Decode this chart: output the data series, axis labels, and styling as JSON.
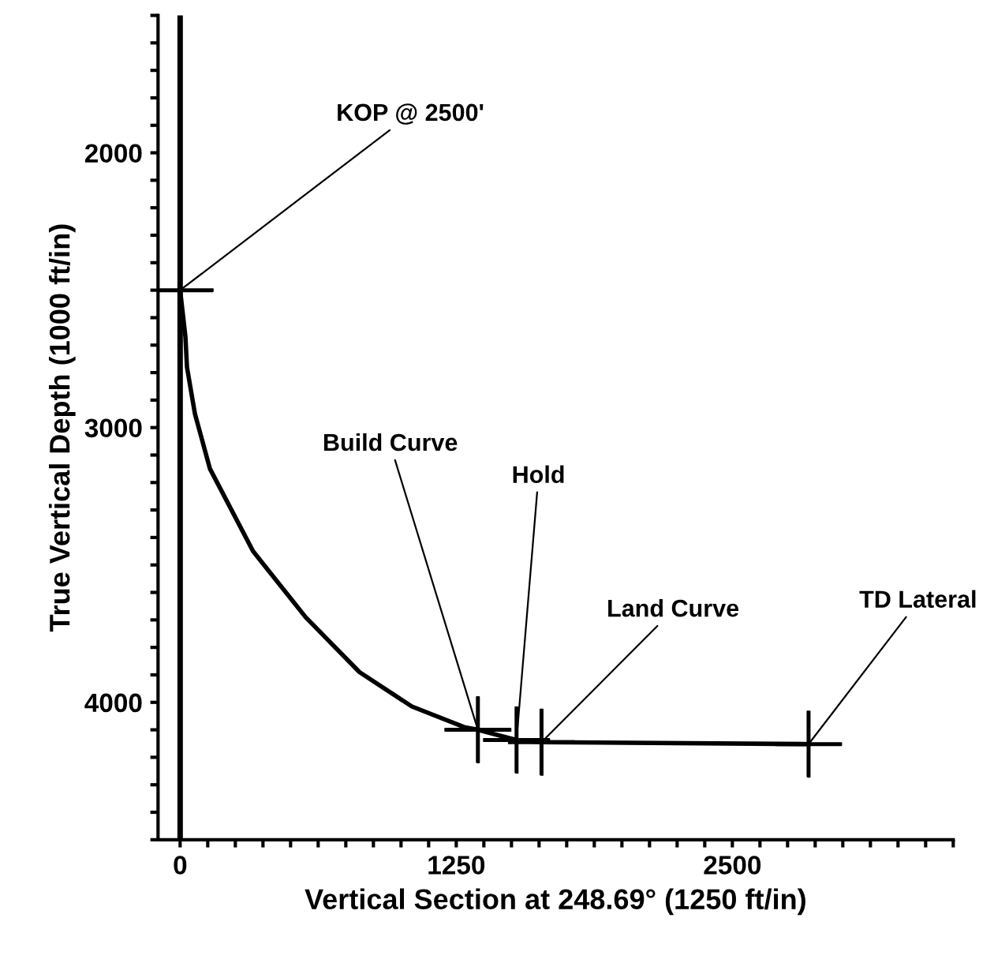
{
  "chart_data": {
    "type": "line",
    "xlabel": "Vertical Section at 248.69° (1250 ft/in)",
    "ylabel": "True Vertical Depth (1000 ft/in)",
    "series": [
      {
        "color": "#000000",
        "marker": "none",
        "x": [
          0,
          24,
          31,
          67,
          135,
          330,
          568,
          812,
          1049,
          1286,
          1348,
          1523,
          1636,
          2845
        ],
        "values": [
          2500,
          2670,
          2780,
          2950,
          3150,
          3450,
          3690,
          3890,
          4015,
          4090,
          4100,
          4137,
          4145,
          4152
        ]
      },
      {
        "type": "scatter",
        "color": "#000000",
        "marker": "cross",
        "x": [
          0,
          1348,
          1523,
          1636,
          2845
        ],
        "values": [
          2500,
          4100,
          4137,
          4145,
          4152
        ]
      }
    ],
    "ref_lines": [
      {
        "axis": "x",
        "value": 0,
        "color": "#000000"
      }
    ],
    "annotations": [
      {
        "text": "KOP @ 2500'",
        "x": 0,
        "y": 2500
      },
      {
        "text": "Build Curve",
        "x": 1348,
        "y": 4100
      },
      {
        "text": "Hold",
        "x": 1523,
        "y": 4137
      },
      {
        "text": "Land Curve",
        "x": 1636,
        "y": 4145
      },
      {
        "text": "TD Lateral",
        "x": 2845,
        "y": 4152
      }
    ],
    "xlim": [
      -100,
      3500
    ],
    "ylim": [
      4500,
      1500
    ],
    "xticks": [
      0,
      {
        "value": 125,
        "label": null
      },
      {
        "value": 250,
        "label": null
      },
      {
        "value": 375,
        "label": null
      },
      {
        "value": 500,
        "label": null
      },
      {
        "value": 625,
        "label": null
      },
      {
        "value": 750,
        "label": null
      },
      {
        "value": 875,
        "label": null
      },
      {
        "value": 1000,
        "label": null
      },
      {
        "value": 1125,
        "label": null
      },
      1250,
      {
        "value": 1375,
        "label": null
      },
      {
        "value": 1500,
        "label": null
      },
      {
        "value": 1625,
        "label": null
      },
      {
        "value": 1750,
        "label": null
      },
      {
        "value": 1875,
        "label": null
      },
      {
        "value": 2000,
        "label": null
      },
      {
        "value": 2125,
        "label": null
      },
      {
        "value": 2250,
        "label": null
      },
      {
        "value": 2375,
        "label": null
      },
      2500,
      {
        "value": 2625,
        "label": null
      },
      {
        "value": 2750,
        "label": null
      },
      {
        "value": 2875,
        "label": null
      },
      {
        "value": 3000,
        "label": null
      },
      {
        "value": 3125,
        "label": null
      },
      {
        "value": 3250,
        "label": null
      },
      {
        "value": 3375,
        "label": null
      },
      {
        "value": 3500,
        "label": null
      }
    ],
    "yticks": [
      {
        "value": 1500,
        "label": null
      },
      {
        "value": 1600,
        "label": null
      },
      {
        "value": 1700,
        "label": null
      },
      {
        "value": 1800,
        "label": null
      },
      {
        "value": 1900,
        "label": null
      },
      2000,
      {
        "value": 2100,
        "label": null
      },
      {
        "value": 2200,
        "label": null
      },
      {
        "value": 2300,
        "label": null
      },
      {
        "value": 2400,
        "label": null
      },
      {
        "value": 2500,
        "label": null
      },
      {
        "value": 2600,
        "label": null
      },
      {
        "value": 2700,
        "label": null
      },
      {
        "value": 2800,
        "label": null
      },
      {
        "value": 2900,
        "label": null
      },
      3000,
      {
        "value": 3100,
        "label": null
      },
      {
        "value": 3200,
        "label": null
      },
      {
        "value": 3300,
        "label": null
      },
      {
        "value": 3400,
        "label": null
      },
      {
        "value": 3500,
        "label": null
      },
      {
        "value": 3600,
        "label": null
      },
      {
        "value": 3700,
        "label": null
      },
      {
        "value": 3800,
        "label": null
      },
      {
        "value": 3900,
        "label": null
      },
      4000,
      {
        "value": 4100,
        "label": null
      },
      {
        "value": 4200,
        "label": null
      },
      {
        "value": 4300,
        "label": null
      },
      {
        "value": 4400,
        "label": null
      },
      {
        "value": 4500,
        "label": null
      }
    ],
    "grid": false
  }
}
